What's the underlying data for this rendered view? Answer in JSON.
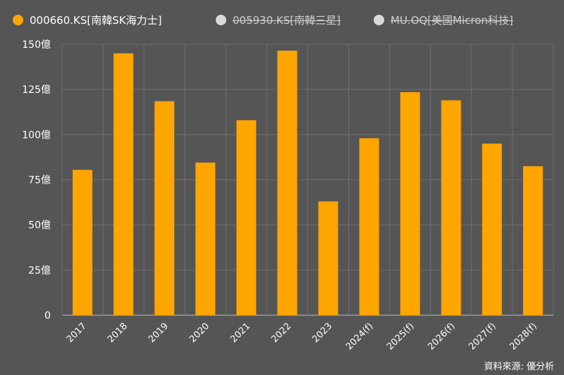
{
  "legend": [
    {
      "label": "000660.KS[南韓SK海力士]",
      "color": "#FFA500",
      "active": true
    },
    {
      "label": "005930.KS[南韓三星]",
      "color": "#D9D9D9",
      "active": false
    },
    {
      "label": "MU.OQ[美國Micron科技]",
      "color": "#D9D9D9",
      "active": false
    }
  ],
  "chart_data": {
    "type": "bar",
    "title": "",
    "xlabel": "",
    "ylabel": "",
    "categories": [
      "2017",
      "2018",
      "2019",
      "2020",
      "2021",
      "2022",
      "2023",
      "2024(f)",
      "2025(f)",
      "2026(f)",
      "2027(f)",
      "2028(f)"
    ],
    "series": [
      {
        "name": "000660.KS[南韓SK海力士]",
        "values": [
          80.5,
          145,
          118.5,
          84.5,
          108,
          146.5,
          63,
          98,
          123.5,
          119,
          95,
          82.5
        ]
      }
    ],
    "ylim": [
      0,
      150
    ],
    "yticks": [
      0,
      25,
      50,
      75,
      100,
      125,
      150
    ],
    "ytick_labels": [
      "0",
      "25億",
      "50億",
      "75億",
      "100億",
      "125億",
      "150億"
    ],
    "grid": true,
    "colors": {
      "bar": "#FFA500",
      "grid": "#6e6e6e",
      "axis": "#bdbdbd",
      "background": "#555555"
    }
  },
  "source": "資料來源: 優分析"
}
